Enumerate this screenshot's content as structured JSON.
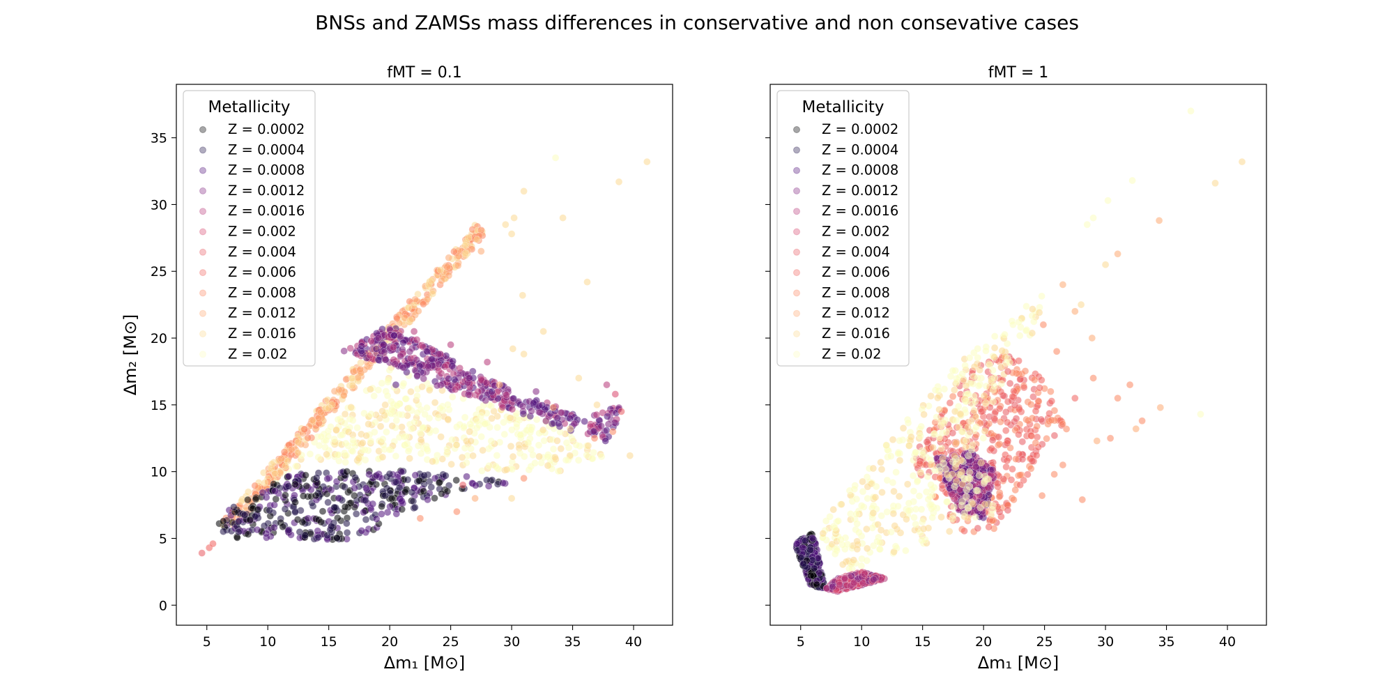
{
  "figure": {
    "title": "BNSs and ZAMSs mass differences in conservative and non consevative cases"
  },
  "palette": [
    "#000004",
    "#1d1147",
    "#51127c",
    "#822681",
    "#b73779",
    "#d8456c",
    "#e85a60",
    "#f1605d",
    "#fb8761",
    "#fea973",
    "#fcd992",
    "#fcfdbf"
  ],
  "chart_data": [
    {
      "type": "scatter",
      "title": "fMT = 0.1",
      "xlabel": "Δm₁ [M⊙]",
      "ylabel": "Δm₂ [M⊙]",
      "xlim": [
        2.5,
        43.2
      ],
      "ylim": [
        -1.5,
        39
      ],
      "xticks": [
        "5",
        "10",
        "15",
        "20",
        "25",
        "30",
        "35",
        "40"
      ],
      "yticks": [
        "0",
        "5",
        "10",
        "15",
        "20",
        "25",
        "30",
        "35"
      ],
      "legend": {
        "title": "Metallicity",
        "position": "upper-left",
        "entries": [
          "Z = 0.0002",
          "Z = 0.0004",
          "Z = 0.0008",
          "Z = 0.0012",
          "Z = 0.0016",
          "Z = 0.002",
          "Z = 0.004",
          "Z = 0.006",
          "Z = 0.008",
          "Z = 0.012",
          "Z = 0.016",
          "Z = 0.02"
        ]
      },
      "regions": [
        {
          "series": 11,
          "polygon": [
            [
              6,
              5.5
            ],
            [
              20,
              18
            ],
            [
              26,
              15.5
            ],
            [
              33,
              14
            ],
            [
              38,
              11
            ],
            [
              36,
              10
            ],
            [
              28,
              10
            ],
            [
              20,
              11
            ],
            [
              12,
              10
            ],
            [
              7,
              7
            ]
          ]
        },
        {
          "series": 9,
          "polygon": [
            [
              6,
              6
            ],
            [
              7.5,
              6
            ],
            [
              28,
              28
            ],
            [
              27,
              28.5
            ]
          ]
        },
        {
          "series": 1,
          "polygon": [
            [
              5.5,
              5.5
            ],
            [
              7,
              5
            ],
            [
              13,
              5
            ],
            [
              16,
              4.8
            ],
            [
              18,
              5.2
            ],
            [
              20,
              6.5
            ],
            [
              24,
              8
            ],
            [
              30,
              9.2
            ],
            [
              25,
              9.8
            ],
            [
              20,
              10.2
            ],
            [
              12,
              9.8
            ],
            [
              8,
              8
            ],
            [
              6,
              6.5
            ]
          ]
        },
        {
          "series": 3,
          "polygon": [
            [
              16,
              19
            ],
            [
              20,
              21
            ],
            [
              28,
              17
            ],
            [
              36,
              14
            ],
            [
              39,
              15
            ],
            [
              38,
              12
            ],
            [
              32,
              14
            ],
            [
              25,
              16
            ],
            [
              20,
              18
            ]
          ]
        }
      ],
      "points": [
        [
          4.6,
          3.9,
          6
        ],
        [
          5.2,
          4.3,
          7
        ],
        [
          5.5,
          4.6,
          7
        ],
        [
          33.6,
          33.5,
          11
        ],
        [
          41.1,
          33.2,
          10
        ],
        [
          38.8,
          31.7,
          10
        ],
        [
          31,
          31,
          10
        ],
        [
          30.2,
          29,
          10
        ],
        [
          34.2,
          29,
          10
        ],
        [
          29.5,
          28.5,
          10
        ],
        [
          30,
          27.8,
          10
        ],
        [
          30.9,
          23.2,
          10
        ],
        [
          27.5,
          26.5,
          9
        ],
        [
          30.1,
          19.2,
          10
        ],
        [
          32.6,
          20.5,
          10
        ],
        [
          35.5,
          17,
          10
        ],
        [
          36.2,
          24.2,
          10
        ],
        [
          37,
          15,
          10
        ],
        [
          38.5,
          15.8,
          5
        ],
        [
          39,
          14.5,
          6
        ],
        [
          39.7,
          11.2,
          10
        ],
        [
          34.8,
          13.2,
          10
        ],
        [
          37.8,
          16.5,
          4
        ],
        [
          36.8,
          12.5,
          8
        ],
        [
          25,
          19.5,
          4
        ],
        [
          28,
          18.2,
          4
        ],
        [
          31,
          18.8,
          10
        ],
        [
          33.4,
          14.8,
          9
        ],
        [
          32,
          16,
          3
        ],
        [
          38.3,
          13,
          8
        ],
        [
          22,
          20.5,
          4
        ],
        [
          26.5,
          17,
          3
        ],
        [
          29,
          16.5,
          9
        ],
        [
          24,
          18.8,
          3
        ],
        [
          20.5,
          16.5,
          2
        ],
        [
          19.5,
          19.5,
          2
        ],
        [
          25.5,
          7,
          8
        ],
        [
          27,
          8,
          9
        ],
        [
          30,
          8,
          10
        ],
        [
          22.5,
          6.5,
          8
        ],
        [
          31,
          9.5,
          8
        ],
        [
          26,
          9,
          6
        ]
      ]
    },
    {
      "type": "scatter",
      "title": "fMT = 1",
      "xlabel": "Δm₁ [M⊙]",
      "ylabel": "",
      "xlim": [
        2.5,
        43.2
      ],
      "ylim": [
        -1.5,
        39
      ],
      "xticks": [
        "5",
        "10",
        "15",
        "20",
        "25",
        "30",
        "35",
        "40"
      ],
      "yticks": [
        "0",
        "5",
        "10",
        "15",
        "20",
        "25",
        "30",
        "35"
      ],
      "legend": {
        "title": "Metallicity",
        "position": "upper-left",
        "entries": [
          "Z = 0.0002",
          "Z = 0.0004",
          "Z = 0.0008",
          "Z = 0.0012",
          "Z = 0.0016",
          "Z = 0.002",
          "Z = 0.004",
          "Z = 0.006",
          "Z = 0.008",
          "Z = 0.012",
          "Z = 0.016",
          "Z = 0.02"
        ]
      },
      "regions": [
        {
          "series": 7,
          "polygon": [
            [
              14,
              11
            ],
            [
              19,
              18
            ],
            [
              22,
              19
            ],
            [
              25,
              17
            ],
            [
              27,
              13
            ],
            [
              25,
              12
            ],
            [
              22,
              7
            ],
            [
              21,
              5.5
            ],
            [
              18,
              5.5
            ],
            [
              16,
              8
            ]
          ]
        },
        {
          "series": 3,
          "polygon": [
            [
              16,
              11
            ],
            [
              19,
              11.5
            ],
            [
              21,
              10
            ],
            [
              20,
              6.5
            ],
            [
              18,
              7
            ]
          ]
        },
        {
          "series": 11,
          "polygon": [
            [
              6.5,
              6
            ],
            [
              18,
              18.5
            ],
            [
              22,
              21
            ],
            [
              25,
              24
            ],
            [
              26,
              26
            ],
            [
              24,
              20
            ],
            [
              20,
              14
            ],
            [
              21,
              6.5
            ],
            [
              15,
              4.5
            ],
            [
              12,
              3.5
            ],
            [
              9,
              2.5
            ],
            [
              7,
              4.5
            ]
          ]
        },
        {
          "series": 1,
          "polygon": [
            [
              4.5,
              4.6
            ],
            [
              6,
              5.5
            ],
            [
              6.5,
              3.5
            ],
            [
              7,
              1.2
            ],
            [
              5.8,
              1.5
            ]
          ]
        },
        {
          "series": 4,
          "polygon": [
            [
              7,
              1.2
            ],
            [
              8,
              1
            ],
            [
              10,
              1.5
            ],
            [
              12,
              2
            ],
            [
              10,
              2.5
            ],
            [
              8,
              2
            ]
          ]
        }
      ],
      "points": [
        [
          37,
          37,
          11
        ],
        [
          41.2,
          33.2,
          10
        ],
        [
          39,
          31.6,
          10
        ],
        [
          34.4,
          28.8,
          9
        ],
        [
          32.2,
          31.8,
          11
        ],
        [
          30.2,
          30.3,
          11
        ],
        [
          31,
          26.3,
          9
        ],
        [
          30,
          25.5,
          10
        ],
        [
          29,
          29,
          11
        ],
        [
          28.5,
          28.5,
          11
        ],
        [
          28,
          22.5,
          10
        ],
        [
          28.9,
          20,
          9
        ],
        [
          26.5,
          24,
          9
        ],
        [
          27.5,
          22,
          9
        ],
        [
          24.9,
          21,
          8
        ],
        [
          26,
          19,
          8
        ],
        [
          32,
          16.5,
          8
        ],
        [
          33,
          13.8,
          8
        ],
        [
          34.5,
          14.8,
          9
        ],
        [
          37.8,
          14.3,
          11
        ],
        [
          30.4,
          12.5,
          8
        ],
        [
          29.3,
          12.3,
          9
        ],
        [
          26.5,
          10.5,
          8
        ],
        [
          28.1,
          7.9,
          8
        ],
        [
          25.8,
          9.8,
          8
        ],
        [
          24.8,
          8.2,
          8
        ],
        [
          23,
          9,
          7
        ],
        [
          24,
          14,
          8
        ],
        [
          25.5,
          16,
          8
        ],
        [
          22,
          17.5,
          6
        ],
        [
          32.5,
          13.2,
          9
        ],
        [
          31,
          15.5,
          8
        ],
        [
          27.5,
          15.5,
          7
        ],
        [
          29,
          17,
          8
        ]
      ]
    }
  ]
}
